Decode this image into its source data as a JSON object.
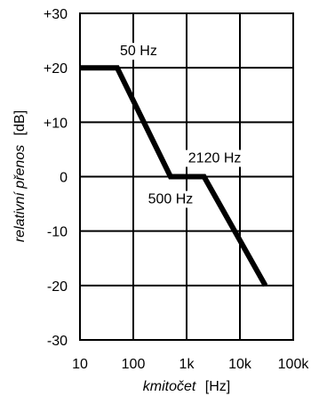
{
  "chart_data": {
    "type": "line",
    "title": "",
    "xlabel_main": "kmitočet",
    "xlabel_unit": "[Hz]",
    "ylabel_main": "relativní přenos",
    "ylabel_unit": "[dB]",
    "x_scale": "log",
    "xlim": [
      10,
      100000
    ],
    "ylim": [
      -30,
      30
    ],
    "grid": true,
    "x_ticks": [
      {
        "value": 10,
        "label": "10"
      },
      {
        "value": 100,
        "label": "100"
      },
      {
        "value": 1000,
        "label": "1k"
      },
      {
        "value": 10000,
        "label": "10k"
      },
      {
        "value": 100000,
        "label": "100k"
      }
    ],
    "y_ticks": [
      {
        "value": 30,
        "label": "+30"
      },
      {
        "value": 20,
        "label": "+20"
      },
      {
        "value": 10,
        "label": "+10"
      },
      {
        "value": 0,
        "label": "0"
      },
      {
        "value": -10,
        "label": "-10"
      },
      {
        "value": -20,
        "label": "-20"
      },
      {
        "value": -30,
        "label": "-30"
      }
    ],
    "series": [
      {
        "x": [
          10,
          50,
          500,
          2120,
          30000
        ],
        "y": [
          20,
          20,
          0,
          0,
          -20
        ]
      }
    ],
    "annotations": [
      {
        "text": "50 Hz",
        "x": 50,
        "y": 20
      },
      {
        "text": "500 Hz",
        "x": 500,
        "y": 0
      },
      {
        "text": "2120 Hz",
        "x": 2120,
        "y": 0
      }
    ]
  }
}
